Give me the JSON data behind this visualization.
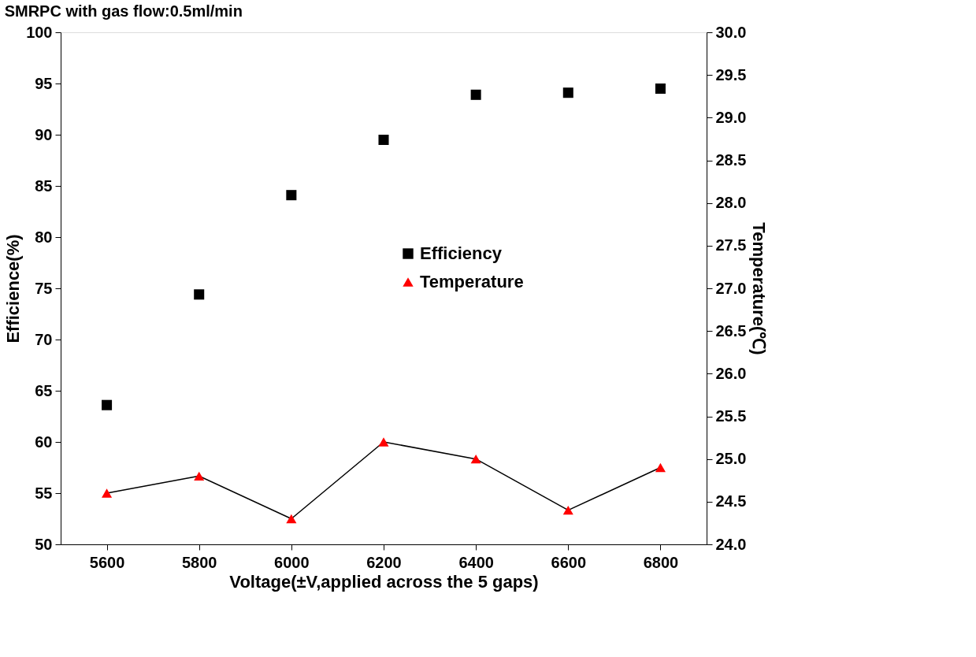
{
  "chart_data": {
    "type": "scatter",
    "title": "SMRPC with gas flow:0.5ml/min",
    "xlabel": "Voltage(±V,applied across the 5 gaps)",
    "ylabel": "Efficience(%)",
    "y2label": "Temperature(℃)",
    "x": [
      5600,
      5800,
      6000,
      6200,
      6400,
      6600,
      6800
    ],
    "series": [
      {
        "name": "Efficiency",
        "marker": "square",
        "color": "#000000",
        "values": [
          63.6,
          74.4,
          84.1,
          89.5,
          93.9,
          94.1,
          94.5
        ]
      },
      {
        "name": "Temperature",
        "type": "line",
        "marker": "triangle",
        "axis": "y2",
        "color": "#ff0000",
        "values": [
          24.6,
          24.8,
          24.3,
          25.2,
          25.0,
          24.4,
          24.9
        ]
      }
    ],
    "xlim": [
      5500,
      6900
    ],
    "xticks": [
      5600,
      5800,
      6000,
      6200,
      6400,
      6600,
      6800
    ],
    "ylim": [
      50,
      100
    ],
    "yticks": [
      50,
      55,
      60,
      65,
      70,
      75,
      80,
      85,
      90,
      95,
      100
    ],
    "y2lim": [
      24.0,
      30.0
    ],
    "y2ticks": [
      {
        "value": 24,
        "label": "24.0"
      },
      {
        "value": 24.5,
        "label": "24.5"
      },
      {
        "value": 25,
        "label": "25.0"
      },
      {
        "value": 25.5,
        "label": "25.5"
      },
      {
        "value": 26,
        "label": "26.0"
      },
      {
        "value": 26.5,
        "label": "26.5"
      },
      {
        "value": 27,
        "label": "27.0"
      },
      {
        "value": 27.5,
        "label": "27.5"
      },
      {
        "value": 28,
        "label": "28.0"
      },
      {
        "value": 28.5,
        "label": "28.5"
      },
      {
        "value": 29,
        "label": "29.0"
      },
      {
        "value": 29.5,
        "label": "29.5"
      },
      {
        "value": 30,
        "label": "30.0"
      }
    ],
    "grid": false,
    "legend": "right"
  }
}
